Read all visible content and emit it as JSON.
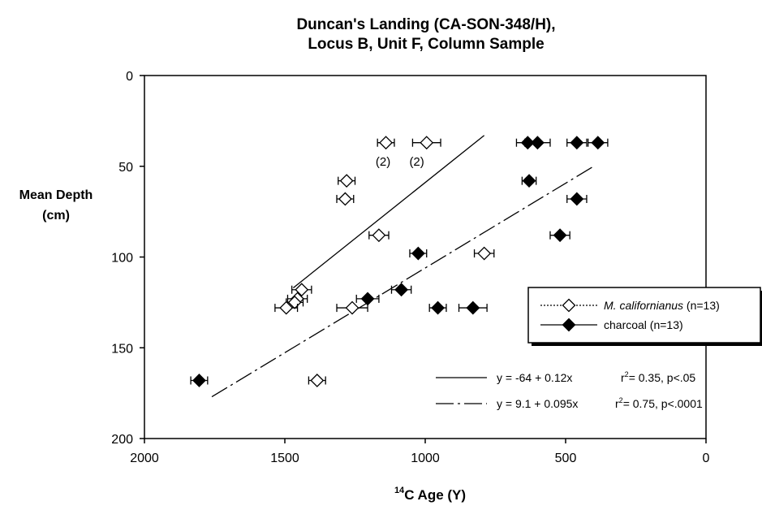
{
  "chart_data": {
    "type": "scatter",
    "title": "Duncan's Landing (CA-SON-348/H),",
    "subtitle": "Locus B, Unit F, Column Sample",
    "xlabel_sup": "14",
    "xlabel_main": "C Age (Y)",
    "ylabel_line1": "Mean Depth",
    "ylabel_line2": "(cm)",
    "xlim": [
      2000,
      0
    ],
    "ylim": [
      0,
      200
    ],
    "y_inverted": true,
    "x_ticks": [
      2000,
      1500,
      1000,
      500,
      0
    ],
    "y_ticks": [
      0,
      50,
      100,
      150,
      200
    ],
    "grid": false,
    "legend_position": "right",
    "series": [
      {
        "name": "M. californianus",
        "legend_label": "(n=13)",
        "marker": "open-diamond",
        "points": [
          {
            "x": 1140,
            "y": 37,
            "err": 30
          },
          {
            "x": 995,
            "y": 37,
            "err": 50
          },
          {
            "x": 1280,
            "y": 58,
            "err": 30
          },
          {
            "x": 1285,
            "y": 68,
            "err": 30
          },
          {
            "x": 1165,
            "y": 88,
            "err": 35
          },
          {
            "x": 790,
            "y": 98,
            "err": 35
          },
          {
            "x": 1440,
            "y": 118,
            "err": 35
          },
          {
            "x": 1455,
            "y": 123,
            "err": 35
          },
          {
            "x": 1465,
            "y": 125,
            "err": 30
          },
          {
            "x": 1495,
            "y": 128,
            "err": 40
          },
          {
            "x": 1260,
            "y": 128,
            "err": 55
          },
          {
            "x": 1385,
            "y": 168,
            "err": 30
          }
        ],
        "point_labels": [
          {
            "x": 1150,
            "y": 47,
            "text": "(2)"
          },
          {
            "x": 1030,
            "y": 47,
            "text": "(2)"
          }
        ]
      },
      {
        "name": "charcoal",
        "legend_label": "(n=13)",
        "marker": "filled-diamond",
        "points": [
          {
            "x": 635,
            "y": 37,
            "err": 40
          },
          {
            "x": 600,
            "y": 37,
            "err": 45
          },
          {
            "x": 460,
            "y": 37,
            "err": 35
          },
          {
            "x": 385,
            "y": 37,
            "err": 35
          },
          {
            "x": 630,
            "y": 58,
            "err": 25
          },
          {
            "x": 460,
            "y": 68,
            "err": 35
          },
          {
            "x": 520,
            "y": 88,
            "err": 35
          },
          {
            "x": 1025,
            "y": 98,
            "err": 30
          },
          {
            "x": 1085,
            "y": 118,
            "err": 35
          },
          {
            "x": 1205,
            "y": 123,
            "err": 40
          },
          {
            "x": 955,
            "y": 128,
            "err": 30
          },
          {
            "x": 830,
            "y": 128,
            "err": 50
          },
          {
            "x": 1805,
            "y": 168,
            "err": 30
          }
        ]
      }
    ],
    "trendlines": [
      {
        "series": "M. californianus",
        "style": "solid",
        "x": [
          1470,
          790
        ],
        "y": [
          117,
          33
        ],
        "equation": "y = -64 + 0.12x",
        "r2_label": "r",
        "r2_sup": "2",
        "r2_text": "= 0.35, p<.05"
      },
      {
        "series": "charcoal",
        "style": "dashed",
        "x": [
          1760,
          400
        ],
        "y": [
          177,
          50
        ],
        "equation": "y = 9.1 + 0.095x",
        "r2_label": "r",
        "r2_sup": "2",
        "r2_text": "= 0.75, p<.0001"
      }
    ]
  }
}
